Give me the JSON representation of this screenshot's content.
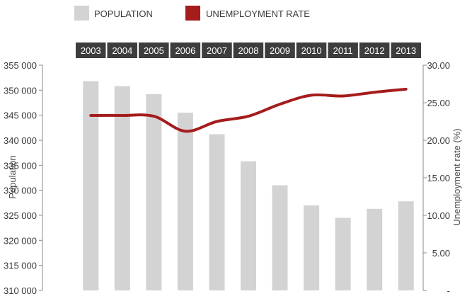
{
  "chart_data": {
    "type": "bar+line",
    "categories": [
      "2003",
      "2004",
      "2005",
      "2006",
      "2007",
      "2008",
      "2009",
      "2010",
      "2011",
      "2012",
      "2013"
    ],
    "series": [
      {
        "name": "POPULATION",
        "type": "bar",
        "axis": "left",
        "color": "#d3d3d3",
        "values": [
          351800,
          350800,
          349200,
          345500,
          341200,
          335800,
          331000,
          327000,
          324500,
          326300,
          327800
        ]
      },
      {
        "name": "UNEMPLOYMENT RATE",
        "type": "line",
        "axis": "right",
        "color": "#a51c1c",
        "values": [
          23.3,
          23.3,
          23.2,
          21.2,
          22.5,
          23.2,
          24.8,
          26.0,
          25.9,
          26.4,
          26.8
        ]
      }
    ],
    "ylabel_left": "Population",
    "ylabel_right": "Unemployment rate (%)",
    "ylim_left": [
      310000,
      355000
    ],
    "ylim_right": [
      0,
      30
    ],
    "yticks_left": [
      "355 000",
      "350 000",
      "345 000",
      "340 000",
      "335 000",
      "330 000",
      "325 000",
      "320 000",
      "315 000",
      "310 000"
    ],
    "yticks_right": [
      "30.00",
      "25.00",
      "20.00",
      "15.00",
      "10.00",
      "5.00",
      "-"
    ],
    "legend_position": "top-left",
    "category_label_bg": "#3d3d3d",
    "category_label_color": "#ffffff",
    "grid": false
  }
}
